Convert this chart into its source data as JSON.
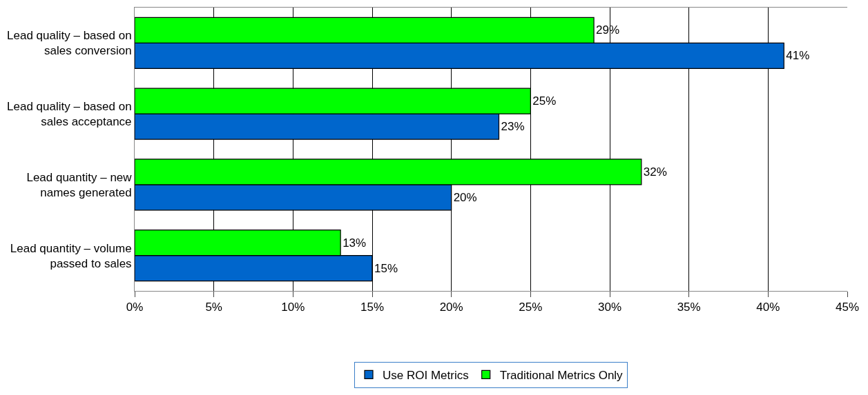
{
  "chart_data": {
    "type": "bar",
    "orientation": "horizontal",
    "categories": [
      "Lead quality – based on sales conversion",
      "Lead quality – based on sales acceptance",
      "Lead quantity – new names generated",
      "Lead quantity – volume passed to sales"
    ],
    "series": [
      {
        "name": "Use ROI Metrics",
        "color": "#0066cc",
        "values": [
          41,
          23,
          20,
          15
        ],
        "value_labels": [
          "41%",
          "23%",
          "20%",
          "15%"
        ]
      },
      {
        "name": "Traditional Metrics Only",
        "color": "#00ff00",
        "values": [
          29,
          25,
          32,
          13
        ],
        "value_labels": [
          "29%",
          "25%",
          "32%",
          "13%"
        ]
      }
    ],
    "xlim": [
      0,
      45
    ],
    "xticks": [
      {
        "value": 0,
        "label": "0%"
      },
      {
        "value": 5,
        "label": "5%"
      },
      {
        "value": 10,
        "label": "10%"
      },
      {
        "value": 15,
        "label": "15%"
      },
      {
        "value": 20,
        "label": "20%"
      },
      {
        "value": 25,
        "label": "25%"
      },
      {
        "value": 30,
        "label": "30%"
      },
      {
        "value": 35,
        "label": "35%"
      },
      {
        "value": 40,
        "label": "40%"
      },
      {
        "value": 45,
        "label": "45%"
      }
    ],
    "grid": "x",
    "legend": "bottom"
  }
}
